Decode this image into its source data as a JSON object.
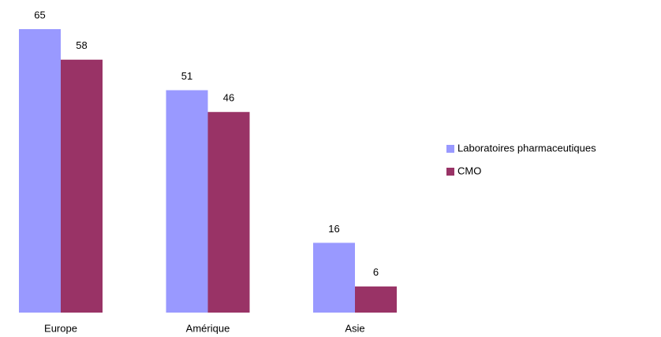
{
  "chart_data": {
    "type": "bar",
    "categories": [
      "Europe",
      "Amérique",
      "Asie"
    ],
    "series": [
      {
        "name": "Laboratoires pharmaceutiques",
        "color": "#9999ff",
        "values": [
          65,
          51,
          16
        ]
      },
      {
        "name": "CMO",
        "color": "#993366",
        "values": [
          58,
          46,
          6
        ]
      }
    ],
    "legend": "right"
  }
}
